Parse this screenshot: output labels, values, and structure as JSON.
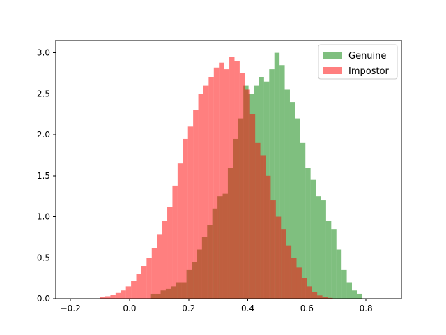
{
  "chart_data": {
    "type": "bar",
    "subtype": "overlapping-histogram",
    "title": "",
    "xlabel": "",
    "ylabel": "",
    "xlim": [
      -0.25,
      0.92
    ],
    "ylim": [
      0.0,
      3.15
    ],
    "xticks": [
      -0.2,
      0.0,
      0.2,
      0.4,
      0.6,
      0.8
    ],
    "xtick_labels": [
      "−0.2",
      "0.0",
      "0.2",
      "0.4",
      "0.6",
      "0.8"
    ],
    "yticks": [
      0.0,
      0.5,
      1.0,
      1.5,
      2.0,
      2.5,
      3.0
    ],
    "ytick_labels": [
      "0.0",
      "0.5",
      "1.0",
      "1.5",
      "2.0",
      "2.5",
      "3.0"
    ],
    "grid": false,
    "legend_position": "upper-right",
    "overlap_color": "#c05c42",
    "series": [
      {
        "name": "Genuine",
        "color": "#008000",
        "alpha": 0.5,
        "bin_start": 0.07,
        "bin_width": 0.0175,
        "values": [
          0.06,
          0.06,
          0.1,
          0.12,
          0.15,
          0.2,
          0.2,
          0.35,
          0.45,
          0.6,
          0.75,
          0.9,
          1.1,
          1.25,
          1.28,
          1.6,
          1.95,
          2.2,
          2.6,
          2.5,
          2.6,
          2.7,
          2.65,
          2.8,
          3.0,
          2.85,
          2.55,
          2.4,
          2.2,
          1.9,
          1.6,
          1.45,
          1.25,
          1.2,
          0.95,
          0.85,
          0.6,
          0.35,
          0.2,
          0.1,
          0.06
        ]
      },
      {
        "name": "Impostor",
        "color": "#ff0000",
        "alpha": 0.5,
        "bin_start": -0.1,
        "bin_width": 0.0175,
        "values": [
          0.02,
          0.03,
          0.05,
          0.07,
          0.1,
          0.15,
          0.22,
          0.3,
          0.4,
          0.5,
          0.62,
          0.78,
          0.95,
          1.12,
          1.38,
          1.65,
          1.95,
          2.1,
          2.3,
          2.5,
          2.6,
          2.7,
          2.82,
          2.88,
          2.8,
          2.95,
          2.9,
          2.75,
          2.55,
          2.25,
          1.9,
          1.75,
          1.5,
          1.2,
          1.0,
          0.85,
          0.65,
          0.5,
          0.38,
          0.25,
          0.15,
          0.08,
          0.04,
          0.02,
          0.01
        ]
      }
    ]
  }
}
